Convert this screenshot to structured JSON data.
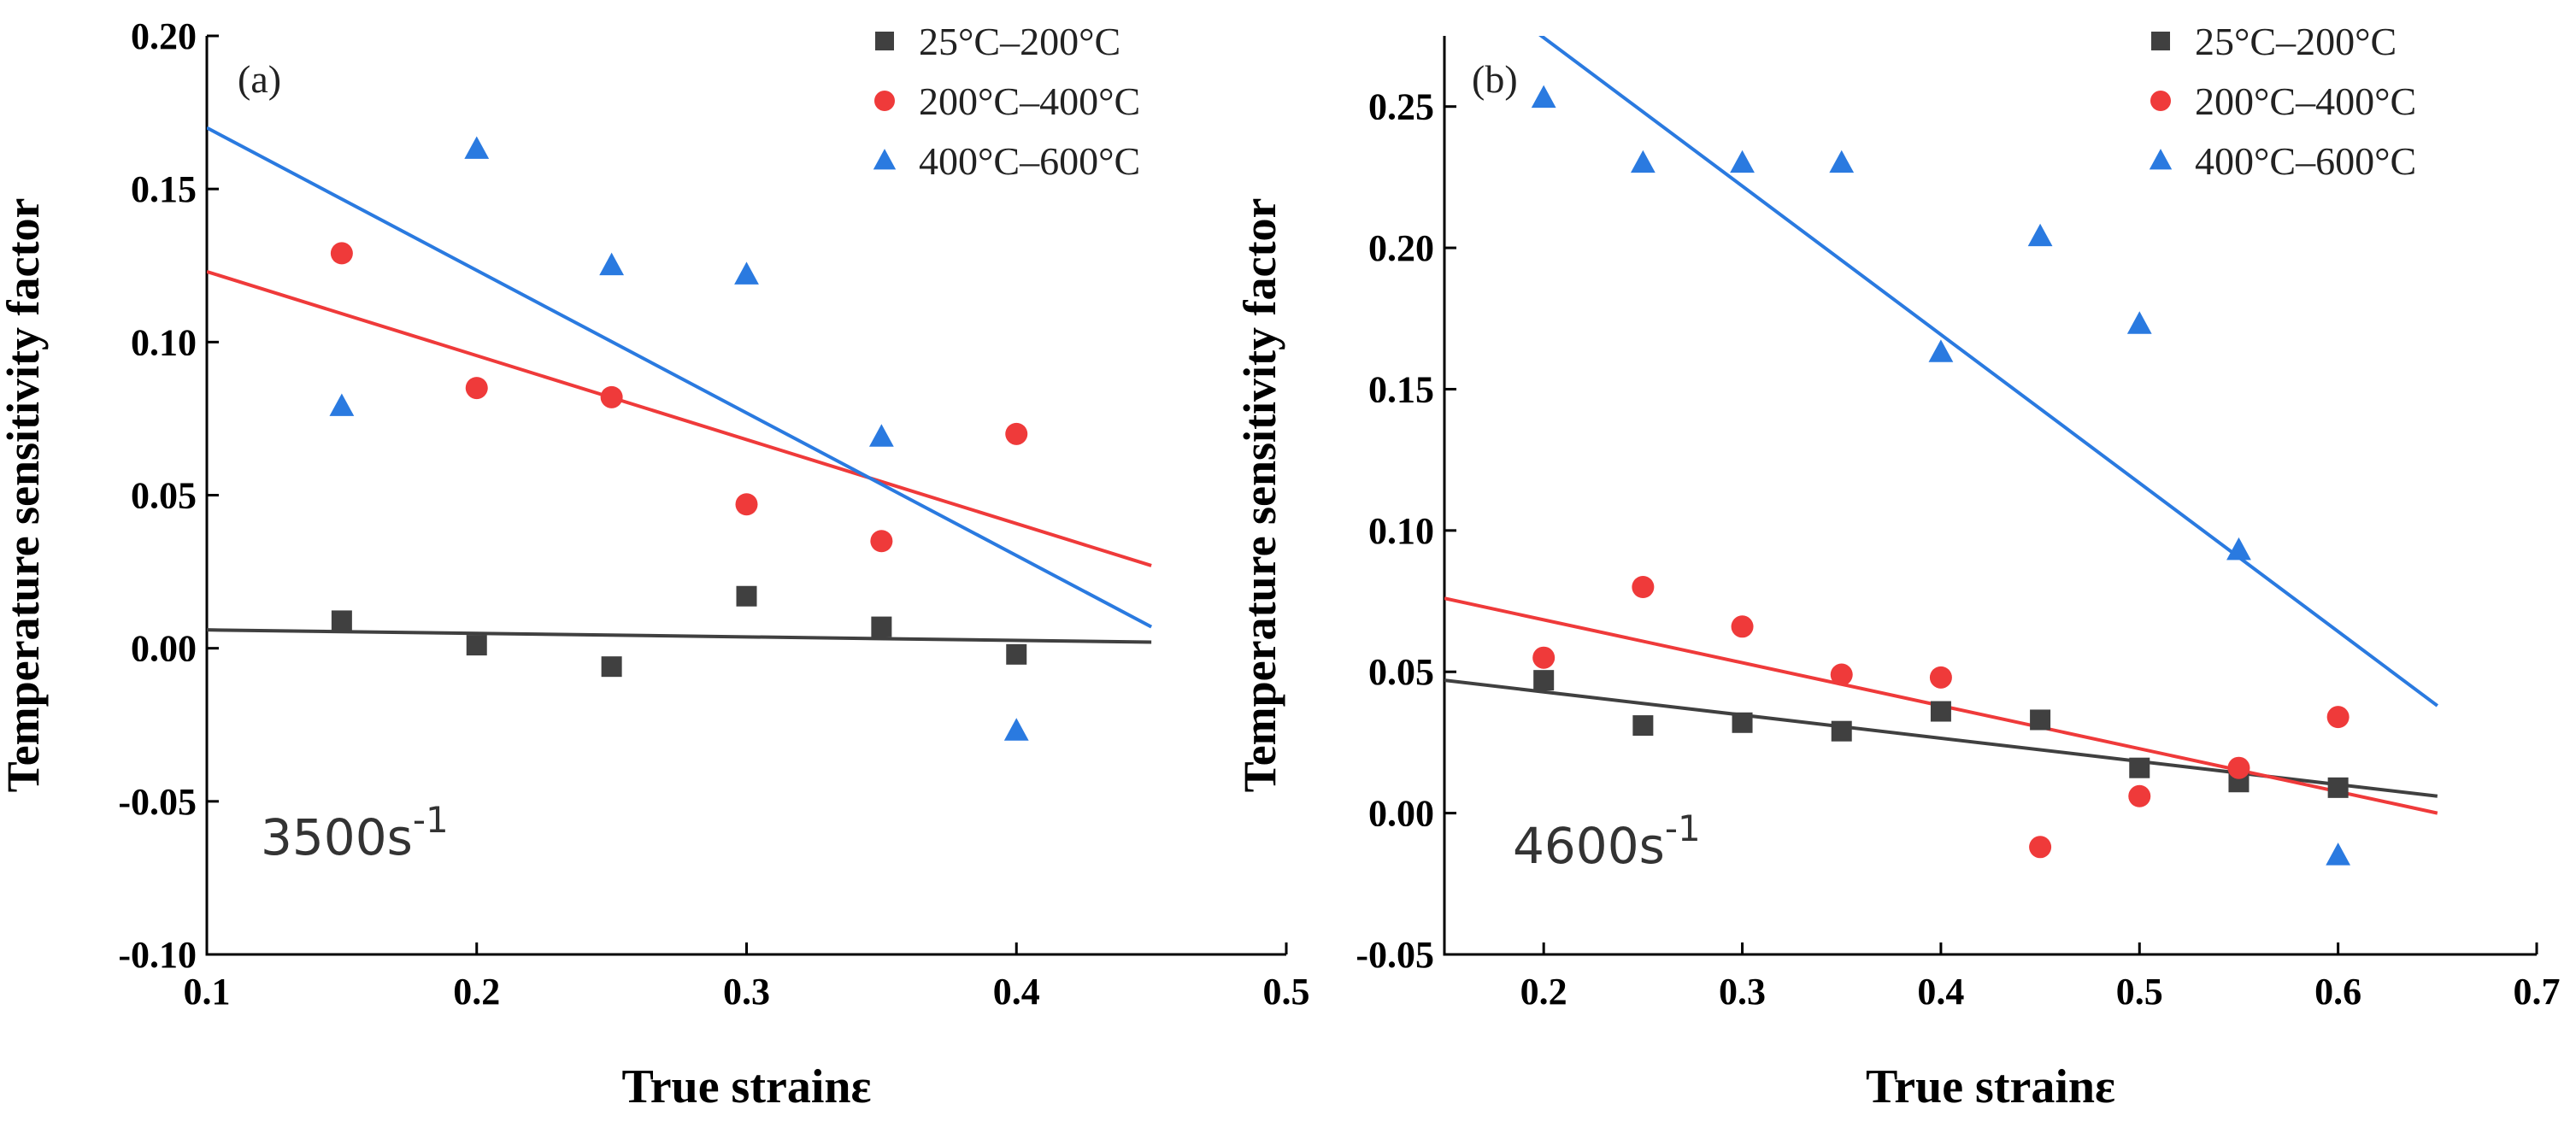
{
  "colors": {
    "series1": "#404040",
    "series2": "#ef3a3a",
    "series3": "#2a7ae0",
    "axis": "#000000",
    "background": "#ffffff"
  },
  "chart_data": [
    {
      "type": "scatter",
      "panel_label": "(a)",
      "annotation": "3500s",
      "annotation_exponent": "-1",
      "xlabel": "True strainε",
      "ylabel": "Temperature sensitivity factor",
      "xlim": [
        0.1,
        0.5
      ],
      "ylim": [
        -0.1,
        0.2
      ],
      "xticks": [
        0.1,
        0.2,
        0.3,
        0.4,
        0.5
      ],
      "xtick_labels": [
        "0.1",
        "0.2",
        "0.3",
        "0.4",
        "0.5"
      ],
      "yticks": [
        -0.1,
        -0.05,
        0.0,
        0.05,
        0.1,
        0.15,
        0.2
      ],
      "ytick_labels": [
        "-0.10",
        "-0.05",
        "0.00",
        "0.05",
        "0.10",
        "0.15",
        "0.20"
      ],
      "grid": false,
      "legend_position": "top-right",
      "series": [
        {
          "name": "25°C–200°C",
          "marker": "square",
          "color": "#404040",
          "x": [
            0.15,
            0.2,
            0.25,
            0.3,
            0.35,
            0.4
          ],
          "y": [
            0.009,
            0.001,
            -0.006,
            0.017,
            0.007,
            -0.002
          ],
          "fit": {
            "x": [
              0.1,
              0.45
            ],
            "y": [
              0.006,
              0.002
            ]
          }
        },
        {
          "name": "200°C–400°C",
          "marker": "circle",
          "color": "#ef3a3a",
          "x": [
            0.15,
            0.2,
            0.25,
            0.3,
            0.35,
            0.4
          ],
          "y": [
            0.129,
            0.085,
            0.082,
            0.047,
            0.035,
            0.07
          ],
          "fit": {
            "x": [
              0.1,
              0.45
            ],
            "y": [
              0.123,
              0.027
            ]
          }
        },
        {
          "name": "400°C–600°C",
          "marker": "triangle",
          "color": "#2a7ae0",
          "x": [
            0.15,
            0.2,
            0.25,
            0.3,
            0.35,
            0.4
          ],
          "y": [
            0.079,
            0.163,
            0.125,
            0.122,
            0.069,
            -0.027
          ],
          "fit": {
            "x": [
              0.1,
              0.45
            ],
            "y": [
              0.17,
              0.007
            ]
          }
        }
      ]
    },
    {
      "type": "scatter",
      "panel_label": "(b)",
      "annotation": "4600s",
      "annotation_exponent": "-1",
      "xlabel": "True strainε",
      "ylabel": "Temperature sensitivity factor",
      "xlim": [
        0.15,
        0.7
      ],
      "ylim": [
        -0.05,
        0.275
      ],
      "xticks": [
        0.2,
        0.3,
        0.4,
        0.5,
        0.6,
        0.7
      ],
      "xtick_labels": [
        "0.2",
        "0.3",
        "0.4",
        "0.5",
        "0.6",
        "0.7"
      ],
      "yticks": [
        -0.05,
        0.0,
        0.05,
        0.1,
        0.15,
        0.2,
        0.25
      ],
      "ytick_labels": [
        "-0.05",
        "0.00",
        "0.05",
        "0.10",
        "0.15",
        "0.20",
        "0.25"
      ],
      "grid": false,
      "legend_position": "top-right",
      "series": [
        {
          "name": "25°C–200°C",
          "marker": "square",
          "color": "#404040",
          "x": [
            0.2,
            0.25,
            0.3,
            0.35,
            0.4,
            0.45,
            0.5,
            0.55,
            0.6
          ],
          "y": [
            0.047,
            0.031,
            0.032,
            0.029,
            0.036,
            0.033,
            0.016,
            0.011,
            0.009
          ],
          "fit": {
            "x": [
              0.15,
              0.65
            ],
            "y": [
              0.047,
              0.006
            ]
          }
        },
        {
          "name": "200°C–400°C",
          "marker": "circle",
          "color": "#ef3a3a",
          "x": [
            0.2,
            0.25,
            0.3,
            0.35,
            0.4,
            0.45,
            0.5,
            0.55,
            0.6
          ],
          "y": [
            0.055,
            0.08,
            0.066,
            0.049,
            0.048,
            -0.012,
            0.006,
            0.016,
            0.034
          ],
          "fit": {
            "x": [
              0.15,
              0.65
            ],
            "y": [
              0.076,
              0.0
            ]
          }
        },
        {
          "name": "400°C–600°C",
          "marker": "triangle",
          "color": "#2a7ae0",
          "x": [
            0.2,
            0.25,
            0.3,
            0.35,
            0.4,
            0.45,
            0.5,
            0.55,
            0.6
          ],
          "y": [
            0.253,
            0.23,
            0.23,
            0.23,
            0.163,
            0.204,
            0.173,
            0.093,
            -0.015
          ],
          "fit": {
            "x": [
              0.195,
              0.65
            ],
            "y": [
              0.277,
              0.038
            ]
          }
        }
      ]
    }
  ]
}
